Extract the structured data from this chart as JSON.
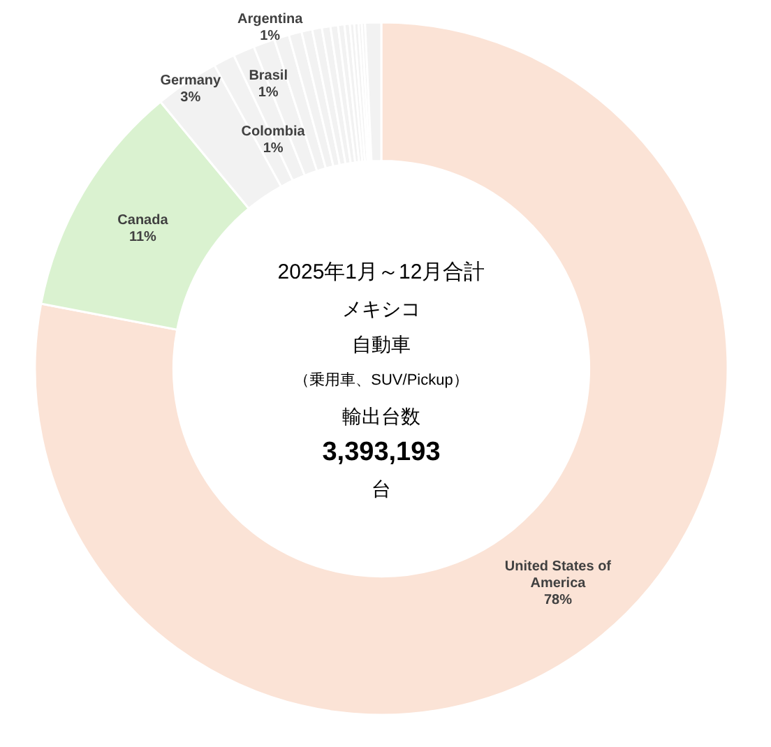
{
  "chart_data": {
    "type": "donut",
    "title": "2025年1月～12月合計",
    "subtitle": "メキシコ",
    "annotations": [
      "自動車",
      "（乗用車、SUV/Pickup）",
      "輸出台数",
      "3,393,193",
      "台"
    ],
    "categories": [
      "United States of America",
      "Canada",
      "Germany",
      "Colombia",
      "Brasil",
      "Argentina",
      null,
      null,
      null,
      null,
      null,
      null,
      null,
      null,
      null,
      null,
      null,
      null,
      null
    ],
    "values": [
      78,
      11,
      3,
      1,
      1,
      1,
      0.7,
      0.6,
      0.5,
      0.45,
      0.4,
      0.35,
      0.3,
      0.25,
      0.2,
      0.2,
      0.15,
      0.15,
      0.75
    ],
    "value_labels": [
      "78%",
      "11%",
      "3%",
      "1%",
      "1%",
      "1%",
      null,
      null,
      null,
      null,
      null,
      null,
      null,
      null,
      null,
      null,
      null,
      null,
      null
    ],
    "colors": [
      "#fbe3d6",
      "#daf2d0",
      "#f2f2f2",
      "#f2f2f2",
      "#f2f2f2",
      "#f2f2f2",
      "#f2f2f2",
      "#f2f2f2",
      "#f2f2f2",
      "#f2f2f2",
      "#f2f2f2",
      "#f2f2f2",
      "#f2f2f2",
      "#f2f2f2",
      "#f2f2f2",
      "#f2f2f2",
      "#f2f2f2",
      "#f2f2f2",
      "#f2f2f2"
    ]
  }
}
